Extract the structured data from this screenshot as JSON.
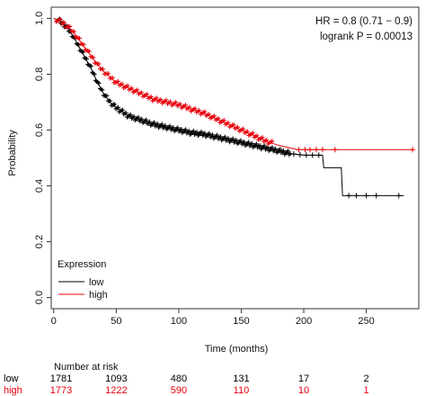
{
  "chart_data": {
    "type": "line",
    "title": "",
    "xlabel": "Time (months)",
    "ylabel": "Probability",
    "xlim": [
      -2,
      292
    ],
    "ylim": [
      -0.04,
      1.04
    ],
    "x_ticks": [
      0,
      50,
      100,
      150,
      200,
      250
    ],
    "y_ticks": [
      0.0,
      0.2,
      0.4,
      0.6,
      0.8,
      1.0
    ],
    "annotations": {
      "hr": "HR = 0.8 (0.71 − 0.9)",
      "logrank": "logrank P = 0.00013"
    },
    "legend": {
      "title": "Expression",
      "position": "bottom-left"
    },
    "series": [
      {
        "name": "low",
        "color": "#000000",
        "x": [
          0,
          5,
          10,
          15,
          20,
          25,
          30,
          35,
          40,
          45,
          50,
          55,
          60,
          70,
          80,
          90,
          100,
          110,
          120,
          130,
          140,
          150,
          160,
          170,
          180,
          190,
          200,
          210,
          215,
          216,
          230,
          231,
          280
        ],
        "y": [
          1.0,
          0.99,
          0.97,
          0.94,
          0.9,
          0.86,
          0.82,
          0.77,
          0.73,
          0.7,
          0.68,
          0.665,
          0.65,
          0.635,
          0.62,
          0.61,
          0.6,
          0.59,
          0.585,
          0.575,
          0.565,
          0.555,
          0.545,
          0.535,
          0.525,
          0.515,
          0.51,
          0.51,
          0.51,
          0.465,
          0.465,
          0.365,
          0.365
        ],
        "censor_x": [
          192,
          197,
          202,
          207,
          212,
          236,
          242,
          250,
          258,
          276
        ]
      },
      {
        "name": "high",
        "color": "#e8000b",
        "x": [
          0,
          5,
          10,
          15,
          20,
          25,
          30,
          35,
          40,
          45,
          50,
          55,
          60,
          70,
          80,
          90,
          100,
          110,
          120,
          130,
          140,
          150,
          160,
          170,
          180,
          190,
          195,
          200,
          210,
          287
        ],
        "y": [
          1.0,
          0.99,
          0.975,
          0.955,
          0.925,
          0.895,
          0.865,
          0.835,
          0.81,
          0.79,
          0.77,
          0.76,
          0.75,
          0.73,
          0.71,
          0.7,
          0.69,
          0.675,
          0.66,
          0.64,
          0.62,
          0.6,
          0.58,
          0.56,
          0.545,
          0.535,
          0.53,
          0.53,
          0.53,
          0.53
        ],
        "censor_x": [
          196,
          201,
          205,
          210,
          215,
          225,
          287
        ]
      }
    ],
    "risk_table": {
      "header": "Number at risk",
      "times": [
        0,
        50,
        100,
        150,
        200,
        250
      ],
      "rows": [
        {
          "label": "low",
          "color": "#000000",
          "values": [
            "1781",
            "1093",
            "480",
            "131",
            "17",
            "2"
          ]
        },
        {
          "label": "high",
          "color": "#e8000b",
          "values": [
            "1773",
            "1222",
            "590",
            "110",
            "10",
            "1"
          ]
        }
      ]
    }
  }
}
